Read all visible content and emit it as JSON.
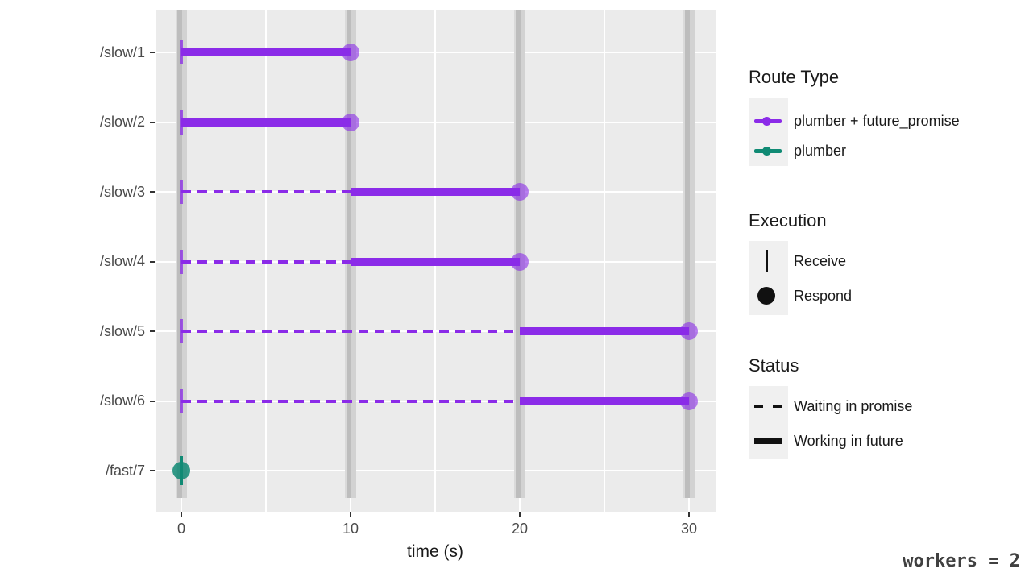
{
  "chart_data": {
    "type": "gantt",
    "xlabel": "time (s)",
    "x_ticks": [
      "0",
      "10",
      "20",
      "30"
    ],
    "x_tick_values": [
      0,
      10,
      20,
      30
    ],
    "xlim": [
      -1.5,
      31.5
    ],
    "minor_gridlines": [
      5,
      15,
      25
    ],
    "worker_bars": [
      0,
      10,
      20,
      30
    ],
    "grid": "on",
    "routes": {
      "plumber + future_promise": {
        "color": "#8B2BE8",
        "circle_alpha": 0.6,
        "tick_alpha": 0.75
      },
      "plumber": {
        "color": "#108A74",
        "circle_alpha": 0.85,
        "tick_alpha": 1
      }
    },
    "rows": [
      {
        "label": "/slow/1",
        "route": "plumber + future_promise",
        "receive": 0,
        "respond": 10,
        "segments": [
          {
            "start": 0,
            "end": 10,
            "status": "working"
          }
        ]
      },
      {
        "label": "/slow/2",
        "route": "plumber + future_promise",
        "receive": 0,
        "respond": 10,
        "segments": [
          {
            "start": 0,
            "end": 10,
            "status": "working"
          }
        ]
      },
      {
        "label": "/slow/3",
        "route": "plumber + future_promise",
        "receive": 0,
        "respond": 20,
        "segments": [
          {
            "start": 0,
            "end": 10,
            "status": "waiting"
          },
          {
            "start": 10,
            "end": 20,
            "status": "working"
          }
        ]
      },
      {
        "label": "/slow/4",
        "route": "plumber + future_promise",
        "receive": 0,
        "respond": 20,
        "segments": [
          {
            "start": 0,
            "end": 10,
            "status": "waiting"
          },
          {
            "start": 10,
            "end": 20,
            "status": "working"
          }
        ]
      },
      {
        "label": "/slow/5",
        "route": "plumber + future_promise",
        "receive": 0,
        "respond": 30,
        "segments": [
          {
            "start": 0,
            "end": 20,
            "status": "waiting"
          },
          {
            "start": 20,
            "end": 30,
            "status": "working"
          }
        ]
      },
      {
        "label": "/slow/6",
        "route": "plumber + future_promise",
        "receive": 0,
        "respond": 30,
        "segments": [
          {
            "start": 0,
            "end": 20,
            "status": "waiting"
          },
          {
            "start": 20,
            "end": 30,
            "status": "working"
          }
        ]
      },
      {
        "label": "/fast/7",
        "route": "plumber",
        "receive": 0,
        "respond": 0,
        "segments": []
      }
    ]
  },
  "legend": {
    "route_type": {
      "title": "Route Type",
      "items": [
        {
          "label": "plumber + future_promise",
          "color": "#8B2BE8"
        },
        {
          "label": "plumber",
          "color": "#108A74"
        }
      ]
    },
    "execution": {
      "title": "Execution",
      "items": [
        {
          "label": "Receive",
          "glyph": "vertical-line"
        },
        {
          "label": "Respond",
          "glyph": "filled-circle"
        }
      ]
    },
    "status": {
      "title": "Status",
      "items": [
        {
          "label": "Waiting in promise",
          "glyph": "dashed-line"
        },
        {
          "label": "Working in future",
          "glyph": "solid-line"
        }
      ]
    }
  },
  "annotation": {
    "workers": "workers = 2"
  },
  "palette": {
    "panel_bg": "#EBEBEB",
    "gridline": "#FFFFFF",
    "worker_bar": "#BDBDBD",
    "axis_text": "#4A4A4A",
    "purple": "#8B2BE8",
    "teal": "#108A74"
  }
}
